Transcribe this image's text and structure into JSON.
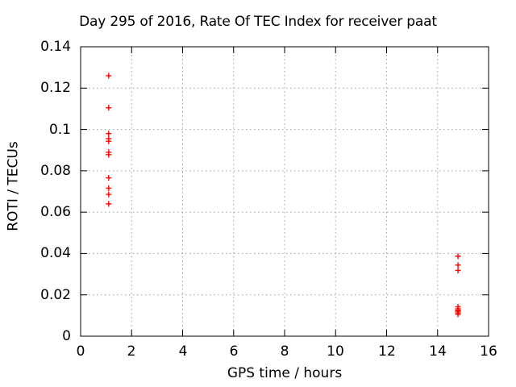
{
  "chart_data": {
    "type": "scatter",
    "title": "Day 295 of 2016, Rate Of TEC Index for receiver paat",
    "xlabel": "GPS time / hours",
    "ylabel": "ROTI / TECUs",
    "xlim": [
      0,
      16
    ],
    "ylim": [
      0,
      0.14
    ],
    "xticks": [
      0,
      2,
      4,
      6,
      8,
      10,
      12,
      14,
      16
    ],
    "xtick_labels": [
      "0",
      "2",
      "4",
      "6",
      "8",
      "10",
      "12",
      "14",
      "16"
    ],
    "yticks": [
      0,
      0.02,
      0.04,
      0.06,
      0.08,
      0.1,
      0.12,
      0.14
    ],
    "ytick_labels": [
      "0",
      "0.02",
      "0.04",
      "0.06",
      "0.08",
      "0.1",
      "0.12",
      "0.14"
    ],
    "grid": "dotted",
    "legend": "none",
    "series": [
      {
        "name": "ROTI",
        "marker": "plus",
        "color": "#ff0000",
        "points": [
          [
            1.1,
            0.126
          ],
          [
            1.1,
            0.1105
          ],
          [
            1.1,
            0.098
          ],
          [
            1.1,
            0.0955
          ],
          [
            1.1,
            0.0943
          ],
          [
            1.1,
            0.089
          ],
          [
            1.1,
            0.0878
          ],
          [
            1.1,
            0.0766
          ],
          [
            1.1,
            0.0716
          ],
          [
            1.1,
            0.0686
          ],
          [
            1.1,
            0.064
          ],
          [
            14.8,
            0.0387
          ],
          [
            14.8,
            0.0344
          ],
          [
            14.8,
            0.0318
          ],
          [
            14.8,
            0.0142
          ],
          [
            14.8,
            0.0133
          ],
          [
            14.8,
            0.0126
          ],
          [
            14.8,
            0.012
          ],
          [
            14.8,
            0.0113
          ],
          [
            14.8,
            0.0106
          ]
        ]
      }
    ]
  },
  "colors": {
    "background": "#ffffff",
    "frame": "#000000",
    "grid": "#a0a0a0",
    "marker": "#ff0000"
  }
}
